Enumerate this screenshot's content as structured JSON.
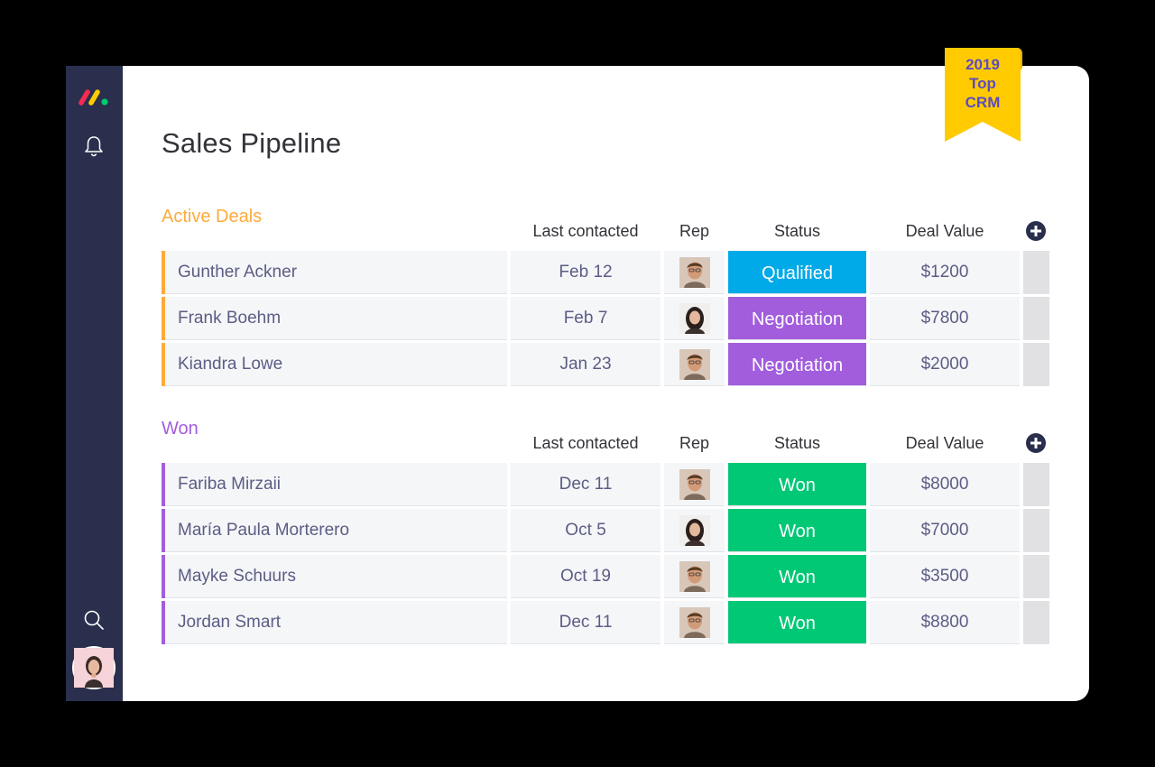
{
  "page": {
    "title": "Sales Pipeline"
  },
  "badge": {
    "line1": "2019",
    "line2": "Top",
    "line3": "CRM"
  },
  "columns": {
    "last_contacted": "Last contacted",
    "rep": "Rep",
    "status": "Status",
    "deal_value": "Deal Value"
  },
  "colors": {
    "sidebar": "#292f4c",
    "active_group": "#fdab3d",
    "won_group": "#a25ddc",
    "qualified": "#00a9e8",
    "negotiation": "#a25ddc",
    "won": "#00c875",
    "badge": "#ffcb00"
  },
  "groups": [
    {
      "title": "Active Deals",
      "rows": [
        {
          "name": "Gunther Ackner",
          "date": "Feb 12",
          "rep": "man-avatar",
          "status": "Qualified",
          "value": "$1200"
        },
        {
          "name": "Frank Boehm",
          "date": "Feb 7",
          "rep": "woman-avatar",
          "status": "Negotiation",
          "value": "$7800"
        },
        {
          "name": "Kiandra Lowe",
          "date": "Jan 23",
          "rep": "man-avatar",
          "status": "Negotiation",
          "value": "$2000"
        }
      ]
    },
    {
      "title": "Won",
      "rows": [
        {
          "name": "Fariba Mirzaii",
          "date": "Dec 11",
          "rep": "man-avatar",
          "status": "Won",
          "value": "$8000"
        },
        {
          "name": "María Paula Morterero",
          "date": "Oct 5",
          "rep": "woman-avatar",
          "status": "Won",
          "value": "$7000"
        },
        {
          "name": "Mayke Schuurs",
          "date": "Oct 19",
          "rep": "man-avatar",
          "status": "Won",
          "value": "$3500"
        },
        {
          "name": "Jordan Smart",
          "date": "Dec 11",
          "rep": "man-avatar",
          "status": "Won",
          "value": "$8800"
        }
      ]
    }
  ],
  "sidebar": {
    "icons": [
      "logo-icon",
      "bell-icon",
      "search-icon",
      "user-avatar"
    ]
  }
}
